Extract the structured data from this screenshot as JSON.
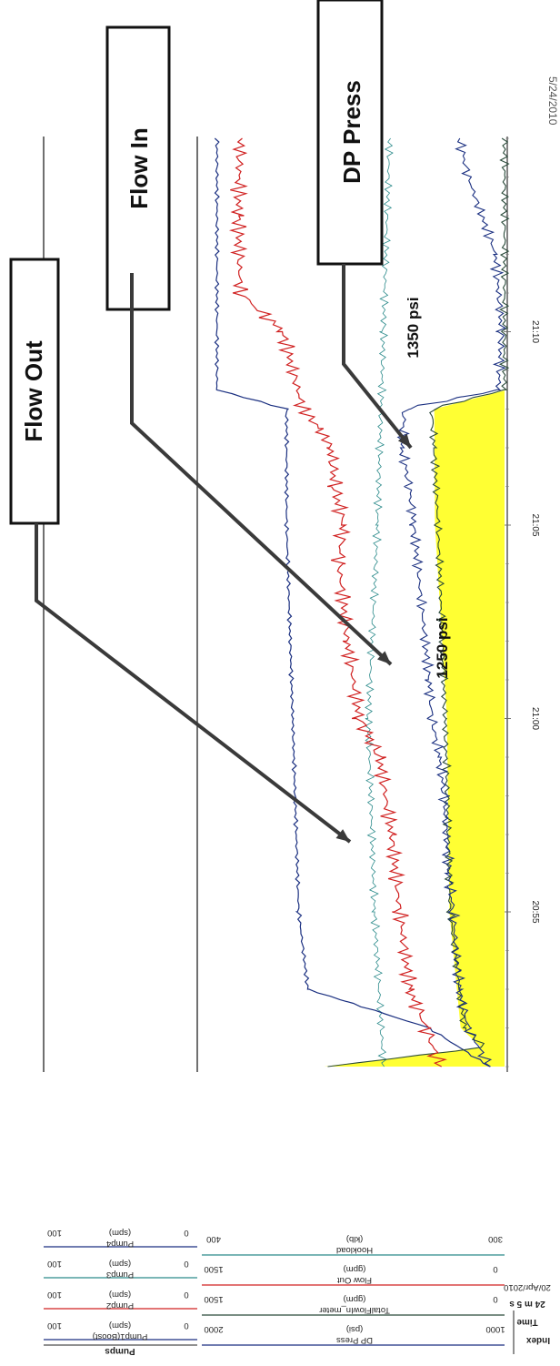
{
  "date_fragment": "5/24/2010",
  "callouts": [
    {
      "label": "Flow Out",
      "target": "flow_out"
    },
    {
      "label": "Flow In",
      "target": "flow_in"
    },
    {
      "label": "DP Press",
      "target": "dp_press"
    }
  ],
  "annotations": [
    "1350 psi",
    "1250 psi"
  ],
  "legend": {
    "index_header": "Index",
    "time_label": "Time",
    "time_span": "24 m 5 s",
    "date": "20/Apr/2010",
    "dp_press": {
      "title": "DP Press",
      "unit": "(psi)",
      "min": "1000",
      "max": "2000"
    },
    "total_flow": {
      "title": "TotalFlowIn_meter",
      "unit": "(gpm)",
      "min": "0",
      "max": "1500"
    },
    "flow_out": {
      "title": "Flow Out",
      "unit": "(gpm)",
      "min": "0",
      "max": "1500"
    },
    "hookload": {
      "title": "Hookload",
      "unit": "(klb)",
      "min": "300",
      "max": "400"
    },
    "pumps_header": "Pumps",
    "pump1": {
      "title": "Pump1(Boost)",
      "unit": "(spm)",
      "min": "0",
      "max": "100"
    },
    "pump2": {
      "title": "Pump2",
      "unit": "(spm)",
      "min": "0",
      "max": "100"
    },
    "pump3": {
      "title": "Pump3",
      "unit": "(spm)",
      "min": "0",
      "max": "100"
    },
    "pump4": {
      "title": "Pump4",
      "unit": "(spm)",
      "min": "0",
      "max": "100"
    }
  },
  "colors": {
    "dp_press": "#1a2f80",
    "flow_in": "#2a4a3a",
    "flow_out": "#d02020",
    "hookload": "#2a8a8a",
    "pumps": "#1a2f80",
    "fill": "#ffff33",
    "callout_arrow": "#3a3a3a"
  },
  "chart_data": {
    "type": "line",
    "orientation": "time axis runs top-to-bottom, rotated display",
    "time_axis": {
      "ticks": [
        "20:55",
        "21:00",
        "21:05",
        "21:10"
      ],
      "range": [
        "20:51",
        "21:15"
      ]
    },
    "grid": true,
    "series": [
      {
        "name": "DP Press",
        "unit": "psi",
        "range": [
          1000,
          2000
        ],
        "points": [
          [
            "20:51",
            1050
          ],
          [
            "20:52",
            1120
          ],
          [
            "20:53",
            1150
          ],
          [
            "20:55",
            1170
          ],
          [
            "20:56",
            1185
          ],
          [
            "20:58",
            1200
          ],
          [
            "20:59",
            1215
          ],
          [
            "21:00",
            1240
          ],
          [
            "21:01",
            1250
          ],
          [
            "21:03",
            1275
          ],
          [
            "21:05",
            1300
          ],
          [
            "21:06",
            1315
          ],
          [
            "21:07",
            1340
          ],
          [
            "21:08",
            1330
          ],
          [
            "21:08.5",
            1020
          ],
          [
            "21:10",
            1010
          ],
          [
            "21:12",
            1030
          ],
          [
            "21:14",
            1120
          ],
          [
            "21:15",
            1150
          ]
        ]
      },
      {
        "name": "Flow Out",
        "unit": "gpm",
        "range": [
          0,
          1500
        ],
        "points": [
          [
            "20:51",
            320
          ],
          [
            "20:52",
            390
          ],
          [
            "20:53",
            470
          ],
          [
            "20:55",
            520
          ],
          [
            "20:57",
            560
          ],
          [
            "20:59",
            620
          ],
          [
            "21:00",
            720
          ],
          [
            "21:02",
            780
          ],
          [
            "21:04",
            820
          ],
          [
            "21:05",
            800
          ],
          [
            "21:06",
            840
          ],
          [
            "21:07",
            860
          ],
          [
            "21:07.5",
            920
          ],
          [
            "21:08",
            1000
          ],
          [
            "21:10",
            1100
          ],
          [
            "21:11",
            1310
          ],
          [
            "21:13",
            1320
          ],
          [
            "21:15",
            1310
          ]
        ]
      },
      {
        "name": "TotalFlowIn_meter",
        "unit": "gpm",
        "range": [
          0,
          1500
        ],
        "points": [
          [
            "20:51",
            880
          ],
          [
            "20:51.5",
            100
          ],
          [
            "20:52",
            200
          ],
          [
            "20:55",
            270
          ],
          [
            "21:00",
            295
          ],
          [
            "21:05",
            330
          ],
          [
            "21:07",
            350
          ],
          [
            "21:08",
            360
          ],
          [
            "21:08.5",
            0
          ],
          [
            "21:15",
            0
          ]
        ]
      },
      {
        "name": "Hookload",
        "unit": "klb",
        "range": [
          300,
          400
        ],
        "points": [
          [
            "20:51",
            340
          ],
          [
            "20:55",
            343
          ],
          [
            "21:00",
            345
          ],
          [
            "21:05",
            342
          ],
          [
            "21:10",
            340
          ],
          [
            "21:15",
            338
          ]
        ]
      },
      {
        "name": "Pump1(Boost)",
        "unit": "spm",
        "range": [
          0,
          100
        ],
        "points": [
          [
            "20:51",
            5
          ],
          [
            "20:52",
            25
          ],
          [
            "20:53",
            65
          ],
          [
            "20:55",
            68
          ],
          [
            "21:00",
            70
          ],
          [
            "21:05",
            72
          ],
          [
            "21:08",
            72
          ],
          [
            "21:08.5",
            95
          ],
          [
            "21:15",
            95
          ]
        ]
      }
    ]
  }
}
